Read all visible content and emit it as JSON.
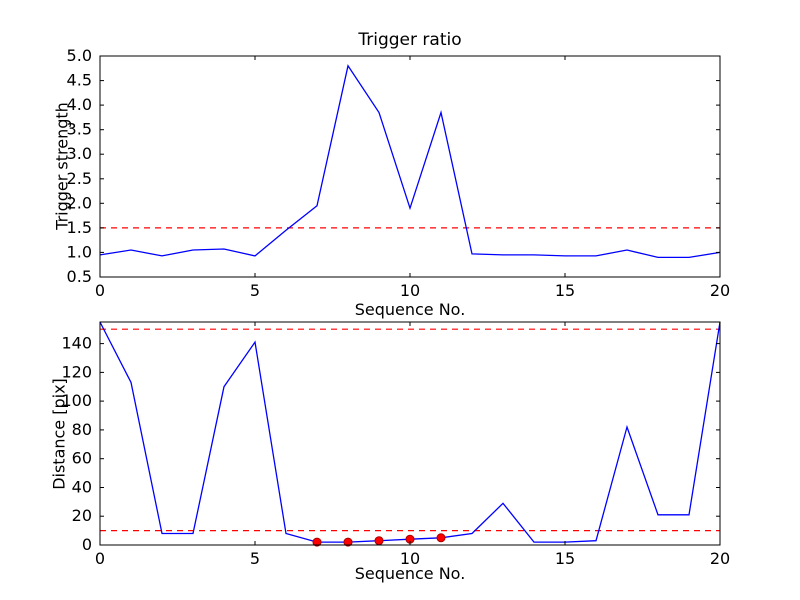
{
  "figure": {
    "background": "#ffffff",
    "line_color": "#0000ff",
    "threshold_color": "#ff0000",
    "marker_color": "#ff0000",
    "marker_edge_color": "#aa0000",
    "axis_color": "#000000"
  },
  "chart_data": [
    {
      "type": "line",
      "title": "Trigger ratio",
      "xlabel": "Sequence No.",
      "ylabel": "Trigger strength",
      "x": [
        0,
        1,
        2,
        3,
        4,
        5,
        6,
        7,
        8,
        9,
        10,
        11,
        12,
        13,
        14,
        15,
        16,
        17,
        18,
        19,
        20
      ],
      "series": [
        {
          "name": "trigger-strength",
          "values": [
            0.95,
            1.05,
            0.93,
            1.05,
            1.07,
            0.93,
            1.45,
            1.95,
            4.8,
            3.85,
            1.9,
            3.85,
            0.97,
            0.95,
            0.95,
            0.93,
            0.93,
            1.05,
            0.9,
            0.9,
            1.0
          ]
        }
      ],
      "thresholds": [
        1.5
      ],
      "xlim": [
        0,
        20
      ],
      "ylim": [
        0.5,
        5.0
      ],
      "xticks": [
        0,
        5,
        10,
        15,
        20
      ],
      "xticklabels": [
        "0",
        "5",
        "10",
        "15",
        "20"
      ],
      "yticks": [
        0.5,
        1.0,
        1.5,
        2.0,
        2.5,
        3.0,
        3.5,
        4.0,
        4.5,
        5.0
      ],
      "yticklabels": [
        "0.5",
        "1.0",
        "1.5",
        "2.0",
        "2.5",
        "3.0",
        "3.5",
        "4.0",
        "4.5",
        "5.0"
      ],
      "grid": false,
      "legend": "none"
    },
    {
      "type": "line",
      "title": "",
      "xlabel": "Sequence No.",
      "ylabel": "Distance [pix]",
      "x": [
        0,
        1,
        2,
        3,
        4,
        5,
        6,
        7,
        8,
        9,
        10,
        11,
        12,
        13,
        14,
        15,
        16,
        17,
        18,
        19,
        20
      ],
      "series": [
        {
          "name": "distance",
          "values": [
            155,
            113,
            8,
            8,
            110,
            141,
            8,
            2,
            2,
            3,
            4,
            5,
            8,
            29,
            2,
            2,
            3,
            82,
            21,
            21,
            155
          ]
        }
      ],
      "thresholds": [
        150,
        10
      ],
      "scatter": {
        "x": [
          7,
          8,
          9,
          10,
          11
        ],
        "y": [
          2,
          2,
          3,
          4,
          5
        ]
      },
      "xlim": [
        0,
        20
      ],
      "ylim": [
        0,
        155
      ],
      "xticks": [
        0,
        5,
        10,
        15,
        20
      ],
      "xticklabels": [
        "0",
        "5",
        "10",
        "15",
        "20"
      ],
      "yticks": [
        0,
        20,
        40,
        60,
        80,
        100,
        120,
        140
      ],
      "yticklabels": [
        "0",
        "20",
        "40",
        "60",
        "80",
        "100",
        "120",
        "140"
      ],
      "grid": false,
      "legend": "none"
    }
  ]
}
